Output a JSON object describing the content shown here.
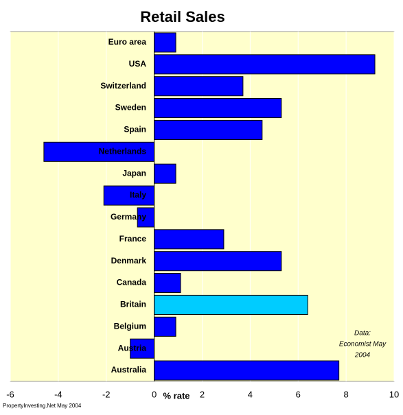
{
  "chart_data": {
    "type": "hbar",
    "title": "Retail Sales",
    "xlabel": "% rate",
    "categories": [
      "Euro area",
      "USA",
      "Switzerland",
      "Sweden",
      "Spain",
      "Netherlands",
      "Japan",
      "Italy",
      "Germany",
      "France",
      "Denmark",
      "Canada",
      "Britain",
      "Belgium",
      "Austria",
      "Australia"
    ],
    "values": [
      0.9,
      9.2,
      3.7,
      5.3,
      4.5,
      -4.6,
      0.9,
      -2.1,
      -0.7,
      2.9,
      5.3,
      1.1,
      6.4,
      0.9,
      -1.0,
      7.7
    ],
    "colors": [
      "#0000ff",
      "#0000ff",
      "#0000ff",
      "#0000ff",
      "#0000ff",
      "#0000ff",
      "#0000ff",
      "#0000ff",
      "#0000ff",
      "#0000ff",
      "#0000ff",
      "#0000ff",
      "#00ccff",
      "#0000ff",
      "#0000ff",
      "#0000ff"
    ],
    "xlim": [
      -6,
      10
    ],
    "xticks": [
      -6,
      -4,
      -2,
      0,
      2,
      4,
      6,
      8,
      10
    ],
    "grid": true,
    "annotation": [
      "Data:",
      "Economist May",
      "2004"
    ],
    "footer": "PropertyInvesting.Net May 2004"
  }
}
